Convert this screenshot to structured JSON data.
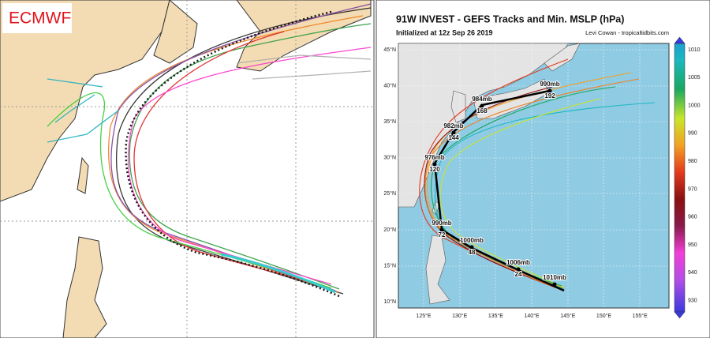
{
  "left_panel": {
    "label": "ECMWF"
  },
  "right_panel": {
    "title": "91W INVEST - GEFS Tracks and Min. MSLP (hPa)",
    "init": "Initialized at 12z Sep 26 2019",
    "credit": "Levi Cowan - tropicaltidbits.com",
    "lat_labels": [
      "45°N",
      "40°N",
      "35°N",
      "30°N",
      "25°N",
      "20°N",
      "15°N",
      "10°N"
    ],
    "lon_labels": [
      "125°E",
      "130°E",
      "135°E",
      "140°E",
      "145°E",
      "150°E",
      "155°E"
    ],
    "colorbar_labels": [
      1010,
      1005,
      1000,
      990,
      980,
      970,
      960,
      950,
      940,
      930
    ],
    "track_labels": [
      {
        "pressure": "990mb",
        "hour": "192"
      },
      {
        "pressure": "984mb",
        "hour": "168"
      },
      {
        "pressure": "982mb",
        "hour": "144"
      },
      {
        "pressure": "976mb",
        "hour": "120"
      },
      {
        "pressure": "990mb",
        "hour": "72"
      },
      {
        "pressure": "1000mb",
        "hour": "48"
      },
      {
        "pressure": "1006mb",
        "hour": "24"
      },
      {
        "pressure": "1010mb"
      }
    ]
  }
}
